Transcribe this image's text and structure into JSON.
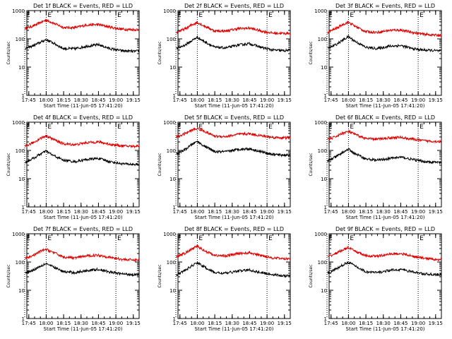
{
  "colors": {
    "events": "#e00000",
    "lld": "#000000",
    "axis": "#000000",
    "background": "#ffffff"
  },
  "chart_data": [
    {
      "type": "line",
      "scale": "log",
      "title": "Det 1f BLACK = Events, RED = LLD",
      "xlabel": "Start Time (11-Jun-05 17:41:20)",
      "ylabel": "Counts/sec",
      "xlim": [
        17.7222,
        19.3333
      ],
      "ylim": [
        1,
        1000
      ],
      "xticks": [
        "17:45",
        "18:00",
        "18:15",
        "18:30",
        "18:45",
        "19:00",
        "19:15"
      ],
      "yticks": [
        "1",
        "10",
        "100",
        "1000"
      ],
      "markers": {
        "label": "E",
        "times": [
          "17:41:30",
          "18:00",
          "19:00"
        ]
      },
      "x": [
        "17:42",
        "17:50",
        "17:55",
        "18:00",
        "18:05",
        "18:15",
        "18:25",
        "18:35",
        "18:45",
        "18:55",
        "19:05",
        "19:15",
        "19:20"
      ],
      "series": [
        {
          "name": "LLD",
          "color_key": "events",
          "values": [
            230,
            300,
            380,
            460,
            380,
            250,
            250,
            310,
            320,
            260,
            220,
            210,
            215
          ]
        },
        {
          "name": "Events",
          "color_key": "lld",
          "values": [
            45,
            60,
            75,
            95,
            75,
            45,
            45,
            55,
            62,
            45,
            38,
            36,
            37
          ]
        }
      ]
    },
    {
      "type": "line",
      "scale": "log",
      "title": "Det 2f BLACK = Events, RED = LLD",
      "xlabel": "Start Time (11-Jun-05 17:41:20)",
      "ylabel": "Counts/sec",
      "xlim": [
        17.7222,
        19.3333
      ],
      "ylim": [
        1,
        1000
      ],
      "xticks": [
        "17:45",
        "18:00",
        "18:15",
        "18:30",
        "18:45",
        "19:00",
        "19:15"
      ],
      "yticks": [
        "1",
        "10",
        "100",
        "1000"
      ],
      "markers": {
        "label": "E",
        "times": [
          "17:41:30",
          "18:00",
          "19:00"
        ]
      },
      "x": [
        "17:42",
        "17:50",
        "17:55",
        "18:00",
        "18:05",
        "18:15",
        "18:25",
        "18:35",
        "18:45",
        "18:55",
        "19:05",
        "19:15",
        "19:20"
      ],
      "series": [
        {
          "name": "LLD",
          "color_key": "events",
          "values": [
            170,
            230,
            310,
            380,
            300,
            190,
            190,
            230,
            240,
            190,
            160,
            155,
            160
          ]
        },
        {
          "name": "Events",
          "color_key": "lld",
          "values": [
            45,
            62,
            85,
            115,
            85,
            50,
            48,
            60,
            68,
            50,
            40,
            38,
            40
          ]
        }
      ]
    },
    {
      "type": "line",
      "scale": "log",
      "title": "Det 3f BLACK = Events, RED = LLD",
      "xlabel": "Start Time (11-Jun-05 17:41:20)",
      "ylabel": "Counts/sec",
      "xlim": [
        17.7222,
        19.3333
      ],
      "ylim": [
        1,
        1000
      ],
      "xticks": [
        "17:45",
        "18:00",
        "18:15",
        "18:30",
        "18:45",
        "19:00",
        "19:15"
      ],
      "yticks": [
        "1",
        "10",
        "100",
        "1000"
      ],
      "markers": {
        "label": "E",
        "times": [
          "17:41:30",
          "18:00",
          "19:00"
        ]
      },
      "x": [
        "17:42",
        "17:50",
        "17:55",
        "18:00",
        "18:05",
        "18:15",
        "18:25",
        "18:35",
        "18:45",
        "18:55",
        "19:05",
        "19:15",
        "19:20"
      ],
      "series": [
        {
          "name": "LLD",
          "color_key": "events",
          "values": [
            170,
            240,
            320,
            390,
            290,
            180,
            170,
            200,
            205,
            170,
            145,
            135,
            135
          ]
        },
        {
          "name": "Events",
          "color_key": "lld",
          "values": [
            45,
            65,
            90,
            120,
            85,
            50,
            45,
            55,
            58,
            45,
            40,
            38,
            37
          ]
        }
      ]
    },
    {
      "type": "line",
      "scale": "log",
      "title": "Det 4f BLACK = Events, RED = LLD",
      "xlabel": "Start Time (11-Jun-05 17:41:20)",
      "ylabel": "Counts/sec",
      "xlim": [
        17.7222,
        19.3333
      ],
      "ylim": [
        1,
        1000
      ],
      "xticks": [
        "17:45",
        "18:00",
        "18:15",
        "18:30",
        "18:45",
        "19:00",
        "19:15"
      ],
      "yticks": [
        "1",
        "10",
        "100",
        "1000"
      ],
      "markers": {
        "label": "E",
        "times": [
          "17:41:30",
          "18:00",
          "19:00"
        ]
      },
      "x": [
        "17:42",
        "17:50",
        "17:55",
        "18:00",
        "18:05",
        "18:15",
        "18:25",
        "18:35",
        "18:45",
        "18:55",
        "19:05",
        "19:15",
        "19:20"
      ],
      "series": [
        {
          "name": "LLD",
          "color_key": "events",
          "values": [
            140,
            200,
            270,
            330,
            260,
            170,
            160,
            190,
            200,
            165,
            145,
            140,
            145
          ]
        },
        {
          "name": "Events",
          "color_key": "lld",
          "values": [
            38,
            55,
            75,
            95,
            70,
            45,
            40,
            48,
            52,
            40,
            34,
            32,
            32
          ]
        }
      ]
    },
    {
      "type": "line",
      "scale": "log",
      "title": "Det 5f BLACK = Events, RED = LLD",
      "xlabel": "Start Time (11-Jun-05 17:41:20)",
      "ylabel": "Counts/sec",
      "xlim": [
        17.7222,
        19.3333
      ],
      "ylim": [
        1,
        1000
      ],
      "xticks": [
        "17:45",
        "18:00",
        "18:15",
        "18:30",
        "18:45",
        "19:00",
        "19:15"
      ],
      "yticks": [
        "1",
        "10",
        "100",
        "1000"
      ],
      "markers": {
        "label": "E",
        "times": [
          "17:41:30",
          "18:00",
          "19:00"
        ]
      },
      "x": [
        "17:42",
        "17:50",
        "17:55",
        "18:00",
        "18:05",
        "18:15",
        "18:25",
        "18:35",
        "18:45",
        "18:55",
        "19:05",
        "19:15",
        "19:20"
      ],
      "series": [
        {
          "name": "LLD",
          "color_key": "events",
          "values": [
            300,
            400,
            520,
            600,
            500,
            320,
            310,
            370,
            390,
            330,
            290,
            280,
            285
          ]
        },
        {
          "name": "Events",
          "color_key": "lld",
          "values": [
            75,
            110,
            160,
            210,
            150,
            90,
            90,
            110,
            115,
            90,
            72,
            68,
            70
          ]
        }
      ]
    },
    {
      "type": "line",
      "scale": "log",
      "title": "Det 6f BLACK = Events, RED = LLD",
      "xlabel": "Start Time (11-Jun-05 17:41:20)",
      "ylabel": "Counts/sec",
      "xlim": [
        17.7222,
        19.3333
      ],
      "ylim": [
        1,
        1000
      ],
      "xticks": [
        "17:45",
        "18:00",
        "18:15",
        "18:30",
        "18:45",
        "19:00",
        "19:15"
      ],
      "yticks": [
        "1",
        "10",
        "100",
        "1000"
      ],
      "markers": {
        "label": "E",
        "times": [
          "17:41:30",
          "18:00",
          "19:00"
        ]
      },
      "x": [
        "17:42",
        "17:50",
        "17:55",
        "18:00",
        "18:05",
        "18:15",
        "18:25",
        "18:35",
        "18:45",
        "18:55",
        "19:05",
        "19:15",
        "19:20"
      ],
      "series": [
        {
          "name": "LLD",
          "color_key": "events",
          "values": [
            240,
            320,
            410,
            470,
            380,
            260,
            250,
            280,
            290,
            250,
            220,
            210,
            205
          ]
        },
        {
          "name": "Events",
          "color_key": "lld",
          "values": [
            42,
            62,
            85,
            110,
            80,
            50,
            45,
            52,
            58,
            48,
            40,
            38,
            37
          ]
        }
      ]
    },
    {
      "type": "line",
      "scale": "log",
      "title": "Det 7f BLACK = Events, RED = LLD",
      "xlabel": "Start Time (11-Jun-05 17:41:20)",
      "ylabel": "Counts/sec",
      "xlim": [
        17.7222,
        19.3333
      ],
      "ylim": [
        1,
        1000
      ],
      "xticks": [
        "17:45",
        "18:00",
        "18:15",
        "18:30",
        "18:45",
        "19:00",
        "19:15"
      ],
      "yticks": [
        "1",
        "10",
        "100",
        "1000"
      ],
      "markers": {
        "label": "E",
        "times": [
          "17:41:30",
          "18:00",
          "19:00"
        ]
      },
      "x": [
        "17:42",
        "17:50",
        "17:55",
        "18:00",
        "18:05",
        "18:15",
        "18:25",
        "18:35",
        "18:45",
        "18:55",
        "19:05",
        "19:15",
        "19:20"
      ],
      "series": [
        {
          "name": "LLD",
          "color_key": "events",
          "values": [
            130,
            180,
            240,
            280,
            230,
            150,
            140,
            165,
            175,
            145,
            125,
            118,
            120
          ]
        },
        {
          "name": "Events",
          "color_key": "lld",
          "values": [
            40,
            55,
            72,
            90,
            70,
            45,
            42,
            50,
            55,
            44,
            38,
            36,
            36
          ]
        }
      ]
    },
    {
      "type": "line",
      "scale": "log",
      "title": "Det 8f BLACK = Events, RED = LLD",
      "xlabel": "Start Time (11-Jun-05 17:41:20)",
      "ylabel": "Counts/sec",
      "xlim": [
        17.7222,
        19.3333
      ],
      "ylim": [
        1,
        1000
      ],
      "xticks": [
        "17:45",
        "18:00",
        "18:15",
        "18:30",
        "18:45",
        "19:00",
        "19:15"
      ],
      "yticks": [
        "1",
        "10",
        "100",
        "1000"
      ],
      "markers": {
        "label": "E",
        "times": [
          "17:41:30",
          "18:00",
          "19:00"
        ]
      },
      "x": [
        "17:42",
        "17:50",
        "17:55",
        "18:00",
        "18:05",
        "18:15",
        "18:25",
        "18:35",
        "18:45",
        "18:55",
        "19:05",
        "19:15",
        "19:20"
      ],
      "series": [
        {
          "name": "LLD",
          "color_key": "events",
          "values": [
            150,
            210,
            280,
            360,
            270,
            170,
            165,
            200,
            210,
            170,
            140,
            130,
            135
          ]
        },
        {
          "name": "Events",
          "color_key": "lld",
          "values": [
            35,
            52,
            72,
            95,
            70,
            42,
            40,
            48,
            52,
            42,
            36,
            32,
            33
          ]
        }
      ]
    },
    {
      "type": "line",
      "scale": "log",
      "title": "Det 9f BLACK = Events, RED = LLD",
      "xlabel": "Start Time (11-Jun-05 17:41:20)",
      "ylabel": "Counts/sec",
      "xlim": [
        17.7222,
        19.3333
      ],
      "ylim": [
        1,
        1000
      ],
      "xticks": [
        "17:45",
        "18:00",
        "18:15",
        "18:30",
        "18:45",
        "19:00",
        "19:15"
      ],
      "yticks": [
        "1",
        "10",
        "100",
        "1000"
      ],
      "markers": {
        "label": "E",
        "times": [
          "17:41:30",
          "18:00",
          "19:00"
        ]
      },
      "x": [
        "17:42",
        "17:50",
        "17:55",
        "18:00",
        "18:05",
        "18:15",
        "18:25",
        "18:35",
        "18:45",
        "18:55",
        "19:05",
        "19:15",
        "19:20"
      ],
      "series": [
        {
          "name": "LLD",
          "color_key": "events",
          "values": [
            150,
            210,
            270,
            320,
            250,
            165,
            160,
            190,
            200,
            160,
            135,
            125,
            125
          ]
        },
        {
          "name": "Events",
          "color_key": "lld",
          "values": [
            40,
            58,
            78,
            100,
            75,
            45,
            42,
            50,
            55,
            45,
            38,
            36,
            35
          ]
        }
      ]
    }
  ]
}
